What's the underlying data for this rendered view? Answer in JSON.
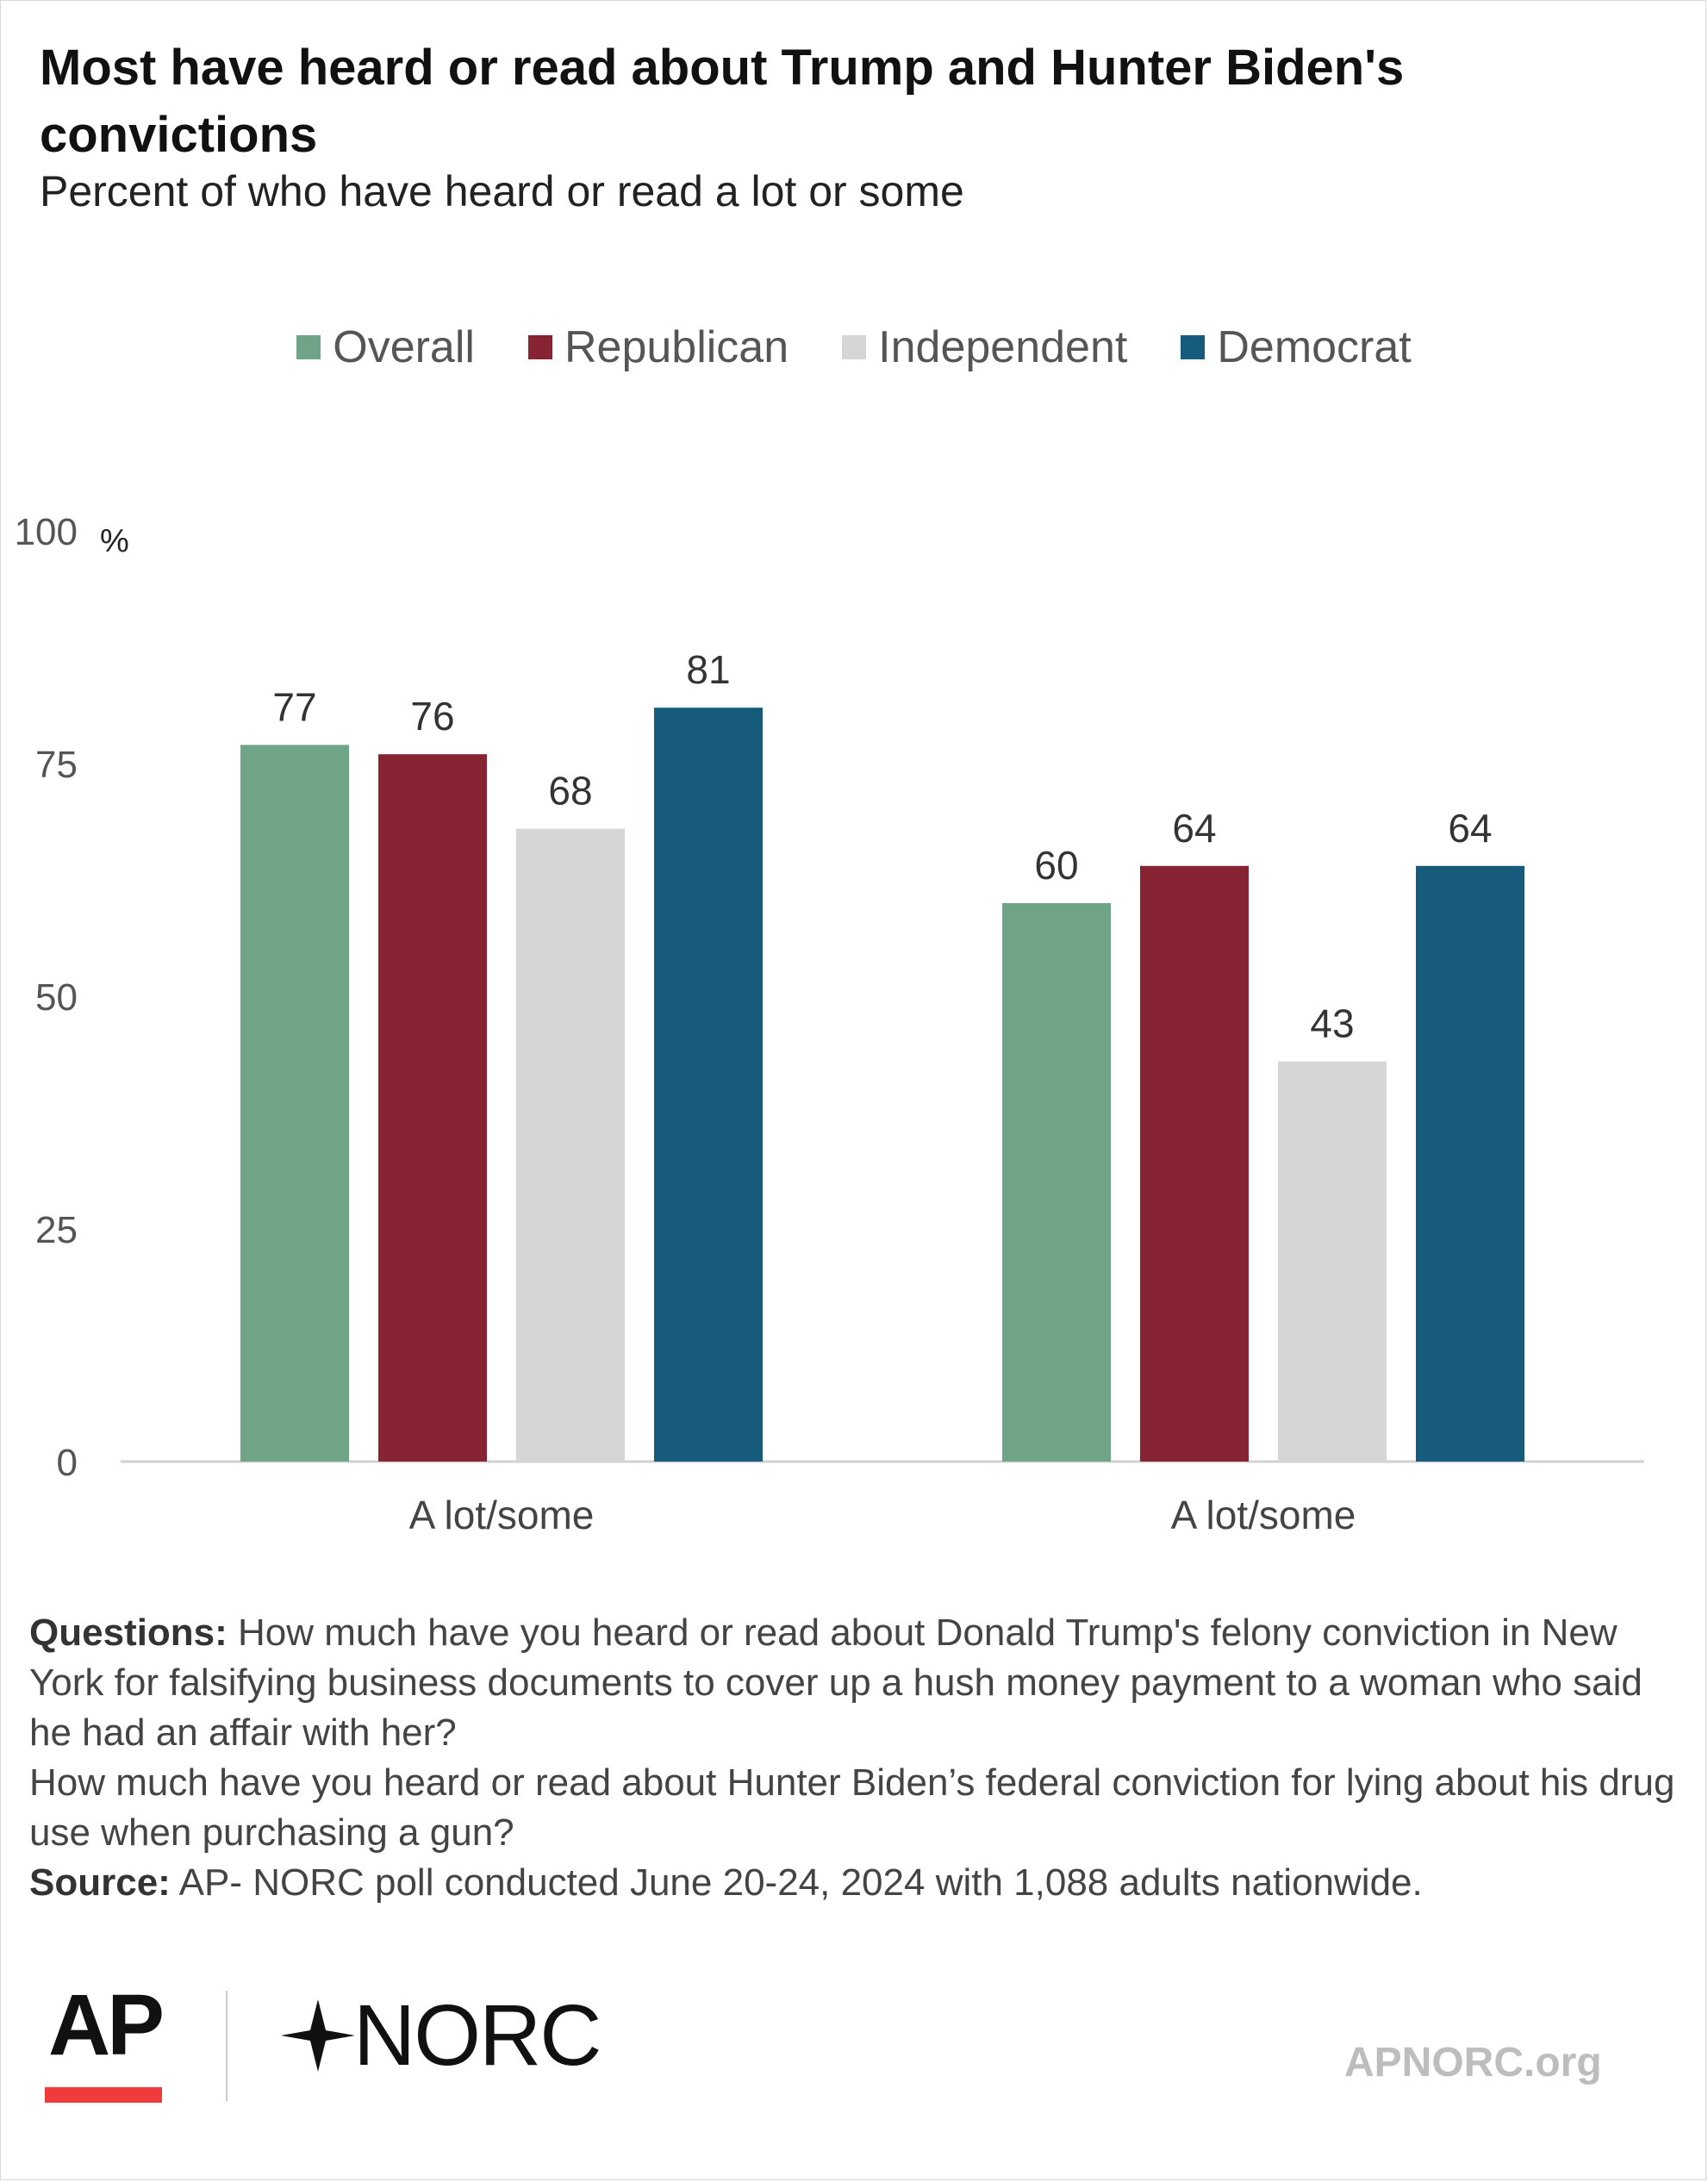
{
  "title": "Most have heard or read about Trump and Hunter Biden's convictions",
  "subtitle": "Percent of who have heard or read a lot or some",
  "chart_data": {
    "type": "bar",
    "categories": [
      "A lot/some",
      "A lot/some"
    ],
    "series": [
      {
        "name": "Overall",
        "color": "#6fa487",
        "values": [
          77,
          60
        ]
      },
      {
        "name": "Republican",
        "color": "#862433",
        "values": [
          76,
          64
        ]
      },
      {
        "name": "Independent",
        "color": "#d6d6d6",
        "values": [
          68,
          43
        ]
      },
      {
        "name": "Democrat",
        "color": "#165b7b",
        "values": [
          81,
          64
        ]
      }
    ],
    "ylim": [
      0,
      100
    ],
    "yticks": [
      0,
      25,
      50,
      75,
      100
    ],
    "yunit": "%",
    "legend": "top-center",
    "grid": false
  },
  "notes": {
    "questions_label": "Questions:",
    "questions_text": " How much have you heard or read about Donald Trump's felony conviction in New York for falsifying business documents to cover up a hush money payment to a woman who said he had an affair with her?",
    "questions_text_2": "How much have you heard or read about Hunter Biden’s federal conviction for lying about his drug use when purchasing a gun?",
    "source_label": "Source:",
    "source_text": " AP- NORC poll conducted June 20-24, 2024 with 1,088 adults nationwide."
  },
  "logos": {
    "ap": "AP",
    "norc": "NORC",
    "site": "APNORC.org"
  }
}
